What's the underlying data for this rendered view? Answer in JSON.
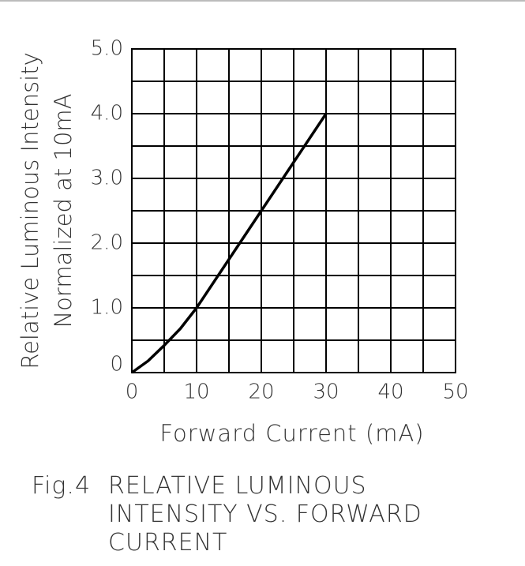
{
  "chart_data": {
    "type": "line",
    "figure_label": "Fig.4",
    "title": "RELATIVE LUMINOUS INTENSITY VS. FORWARD CURRENT",
    "x_label": "Forward Current (mA)",
    "y_label": [
      "Relative Luminous Intensity",
      "Normalized at 10mA"
    ],
    "x": [
      0,
      2.5,
      5,
      7.5,
      10,
      15,
      20,
      25,
      30
    ],
    "series": [
      {
        "color": "#000000",
        "values": [
          0,
          0.18,
          0.42,
          0.68,
          1.0,
          1.75,
          2.5,
          3.25,
          4.0
        ]
      }
    ],
    "xlim": [
      0,
      50
    ],
    "ylim": [
      0,
      5
    ],
    "xticks": [
      0,
      10,
      20,
      30,
      40,
      50
    ],
    "yticks": [
      0,
      {
        "value": 1,
        "label": "1.0"
      },
      {
        "value": 2,
        "label": "2.0"
      },
      {
        "value": 3,
        "label": "3.0"
      },
      {
        "value": 4,
        "label": "4.0"
      },
      {
        "value": 5,
        "label": "5.0"
      }
    ],
    "xgrid": [
      5,
      10,
      15,
      20,
      25,
      30,
      35,
      40,
      45
    ],
    "ygrid": [
      0.5,
      1,
      1.5,
      2,
      2.5,
      3,
      3.5,
      4,
      4.5
    ],
    "grid": true
  }
}
